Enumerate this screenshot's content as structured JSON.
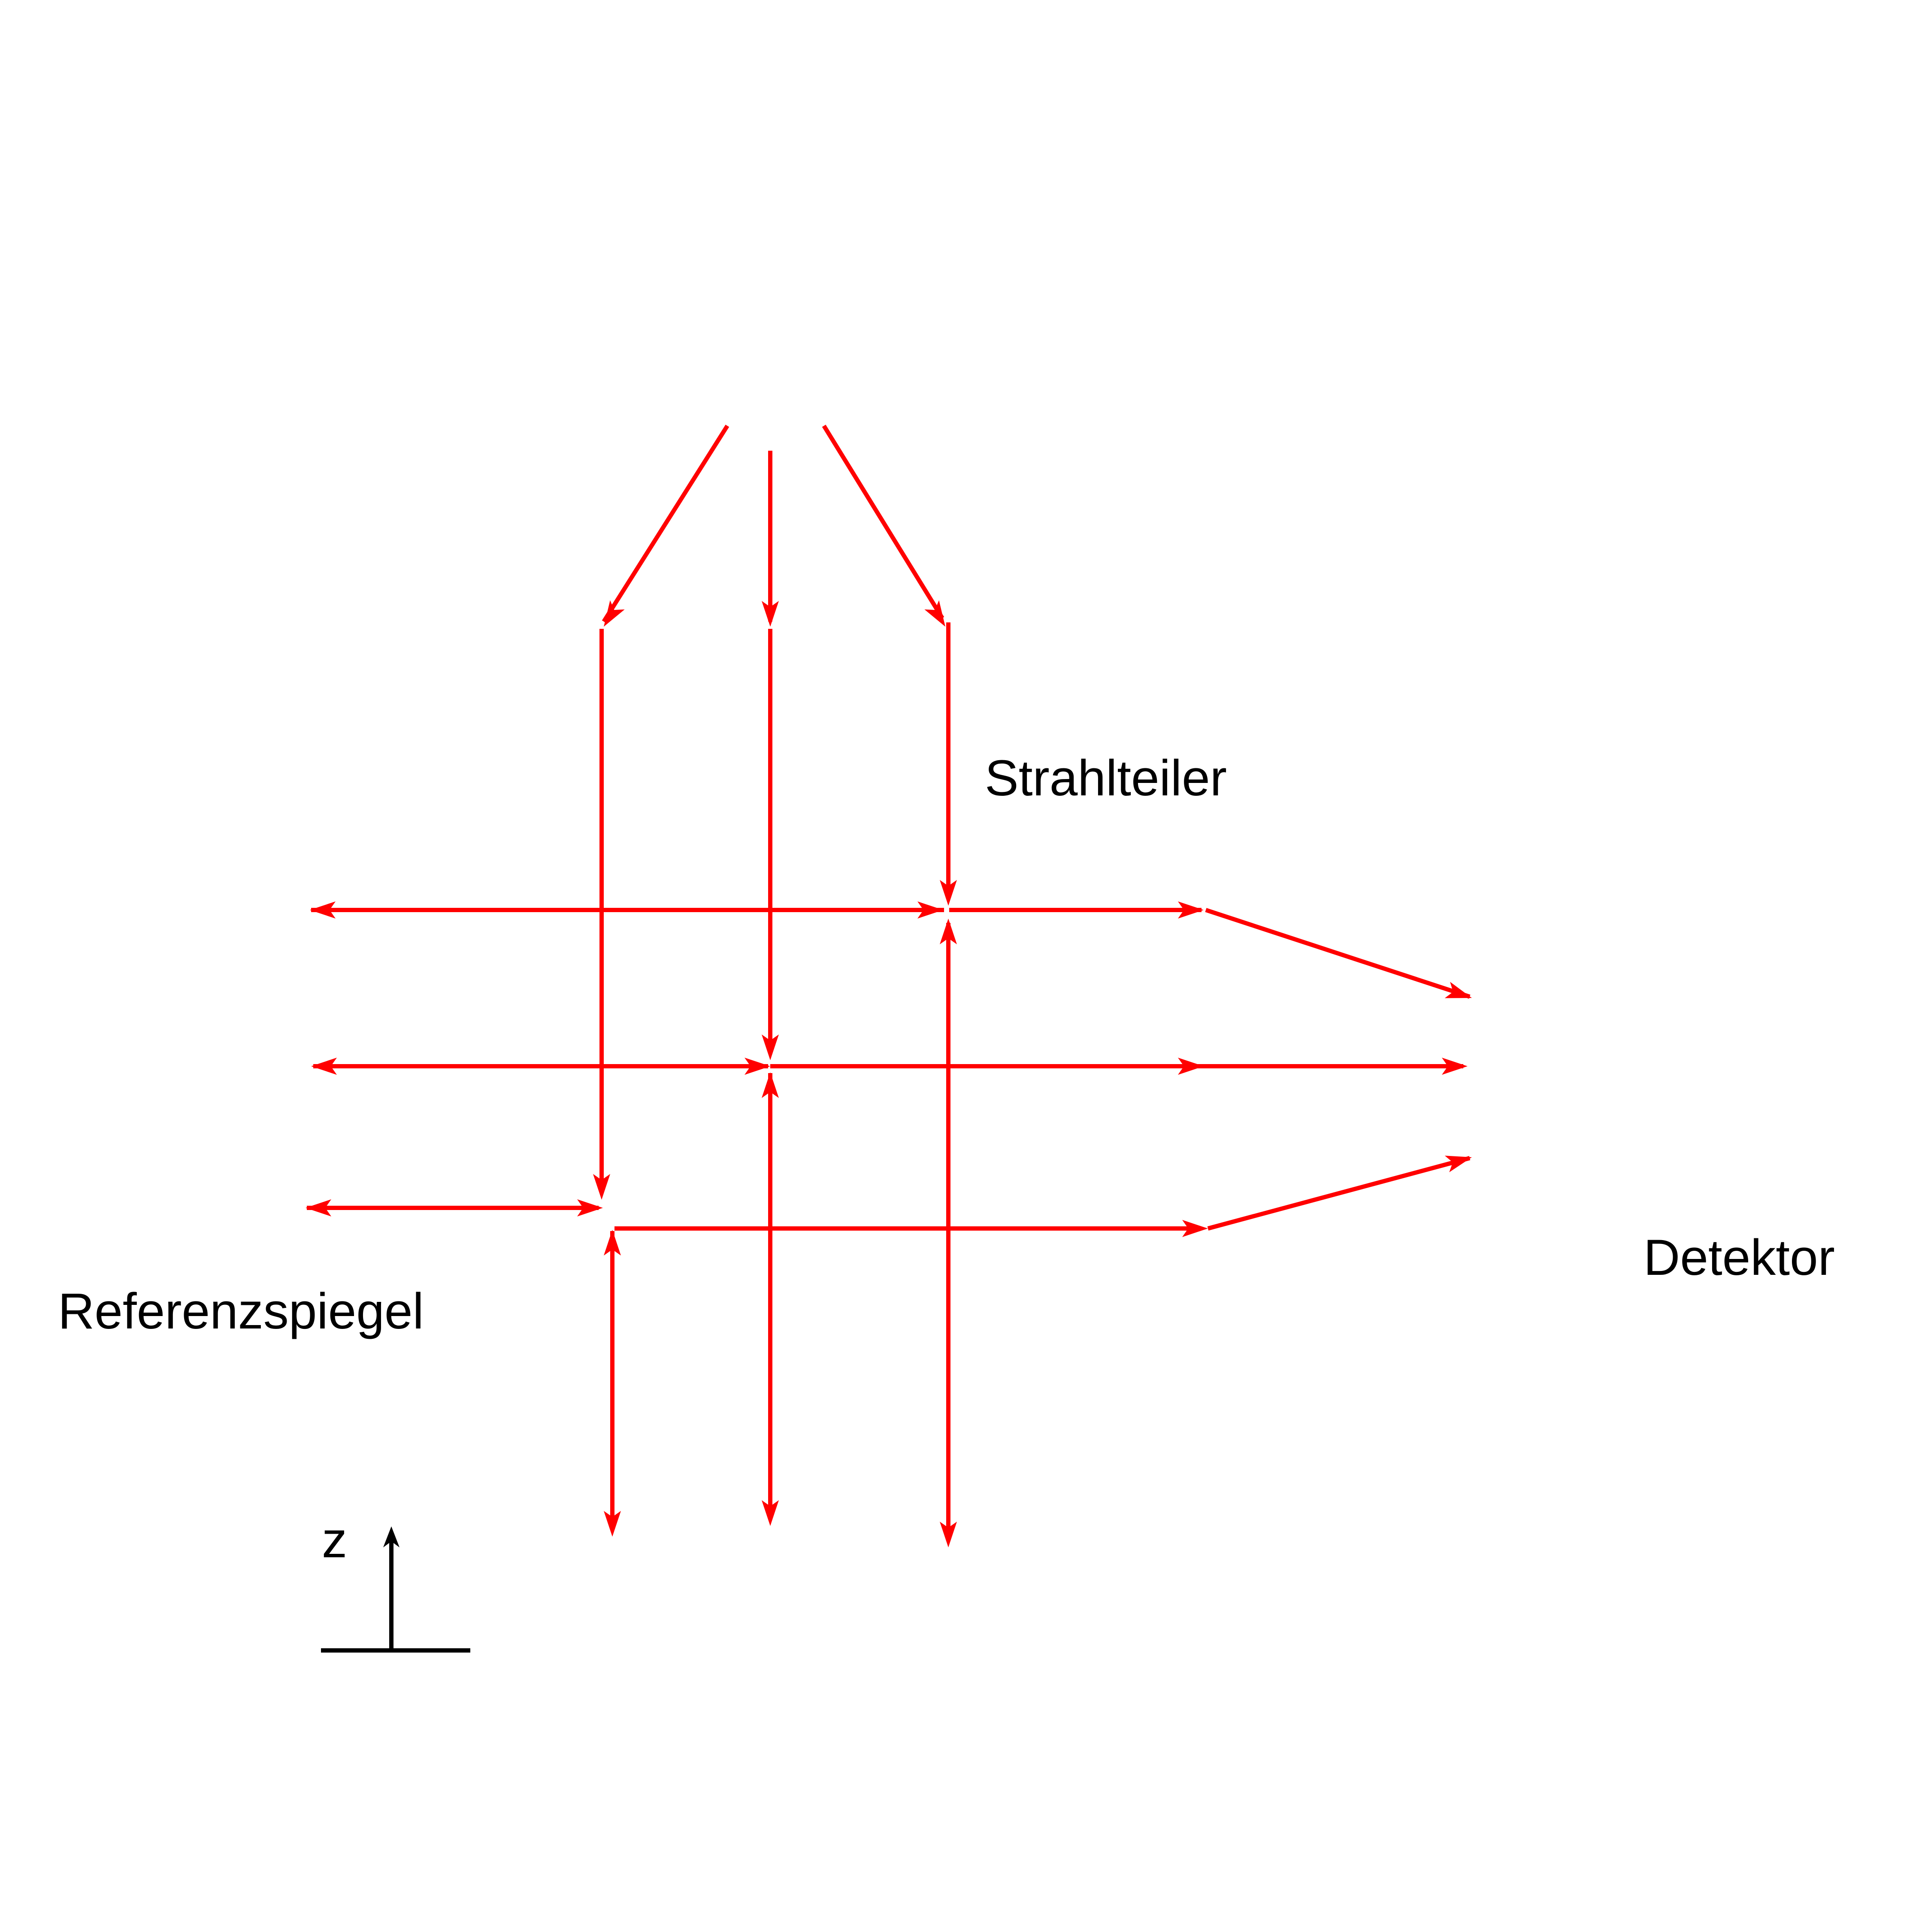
{
  "labels": {
    "beam_splitter": "Strahlteiler",
    "reference_mirror": "Referenzspiegel",
    "detector": "Detektor",
    "axis": "z"
  },
  "colors": {
    "ray": "#ff0000",
    "axis": "#000000",
    "text": "#000000",
    "background": "#ffffff"
  },
  "icons": {
    "arrowhead": "arrowhead-icon"
  }
}
